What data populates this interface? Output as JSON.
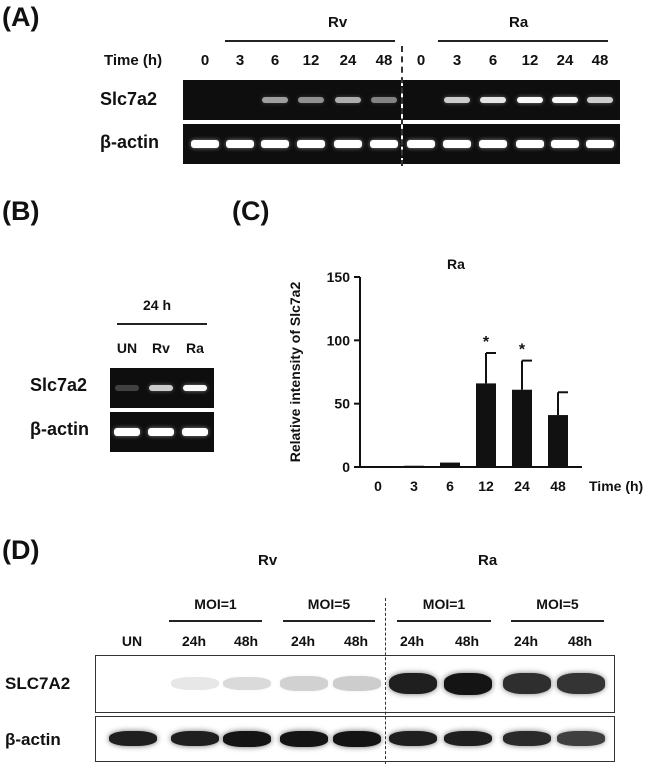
{
  "panel_a": {
    "letter": "(A)",
    "group_rv": "Rv",
    "group_ra": "Ra",
    "time_label": "Time (h)",
    "times": [
      "0",
      "3",
      "6",
      "12",
      "24",
      "48",
      "0",
      "3",
      "6",
      "12",
      "24",
      "48"
    ],
    "row1": "Slc7a2",
    "row2": "β-actin",
    "slc_intensity": [
      0,
      0,
      0.55,
      0.5,
      0.6,
      0.45,
      0,
      0.7,
      0.8,
      0.95,
      0.95,
      0.7
    ],
    "actin_intensity": [
      1,
      1,
      1,
      1,
      1,
      1,
      1,
      1,
      1,
      1,
      1,
      1
    ]
  },
  "panel_b": {
    "letter": "(B)",
    "header": "24 h",
    "lanes": [
      "UN",
      "Rv",
      "Ra"
    ],
    "row1": "Slc7a2",
    "row2": "β-actin",
    "slc_intensity": [
      0.15,
      0.7,
      0.95
    ],
    "actin_intensity": [
      1,
      1,
      1
    ]
  },
  "panel_c": {
    "letter": "(C)",
    "chart_data": {
      "type": "bar",
      "title": "Ra",
      "categories": [
        "0",
        "3",
        "6",
        "12",
        "24",
        "48"
      ],
      "values": [
        0.5,
        1,
        3.5,
        66,
        61,
        41
      ],
      "errors": [
        0,
        0,
        0,
        24,
        23,
        18
      ],
      "significance": [
        "",
        "",
        "",
        "*",
        "*",
        ""
      ],
      "xlabel": "Time (h)",
      "ylabel": "Relative intensity of Slc7a2",
      "ylim": [
        0,
        150
      ],
      "yticks": [
        "0",
        "50",
        "100",
        "150"
      ],
      "bar_color": "#111111"
    }
  },
  "panel_d": {
    "letter": "(D)",
    "group_rv": "Rv",
    "group_ra": "Ra",
    "moi_labels": [
      "MOI=1",
      "MOI=5",
      "MOI=1",
      "MOI=5"
    ],
    "lanes": [
      "UN",
      "24h",
      "48h",
      "24h",
      "48h",
      "24h",
      "48h",
      "24h",
      "48h"
    ],
    "row1": "SLC7A2",
    "row2": "β-actin",
    "slc_intensity": [
      0.0,
      0.02,
      0.08,
      0.12,
      0.14,
      0.95,
      1.0,
      0.88,
      0.85
    ],
    "actin_intensity": [
      0.95,
      0.95,
      1,
      1,
      1,
      0.95,
      0.95,
      0.9,
      0.8
    ]
  }
}
